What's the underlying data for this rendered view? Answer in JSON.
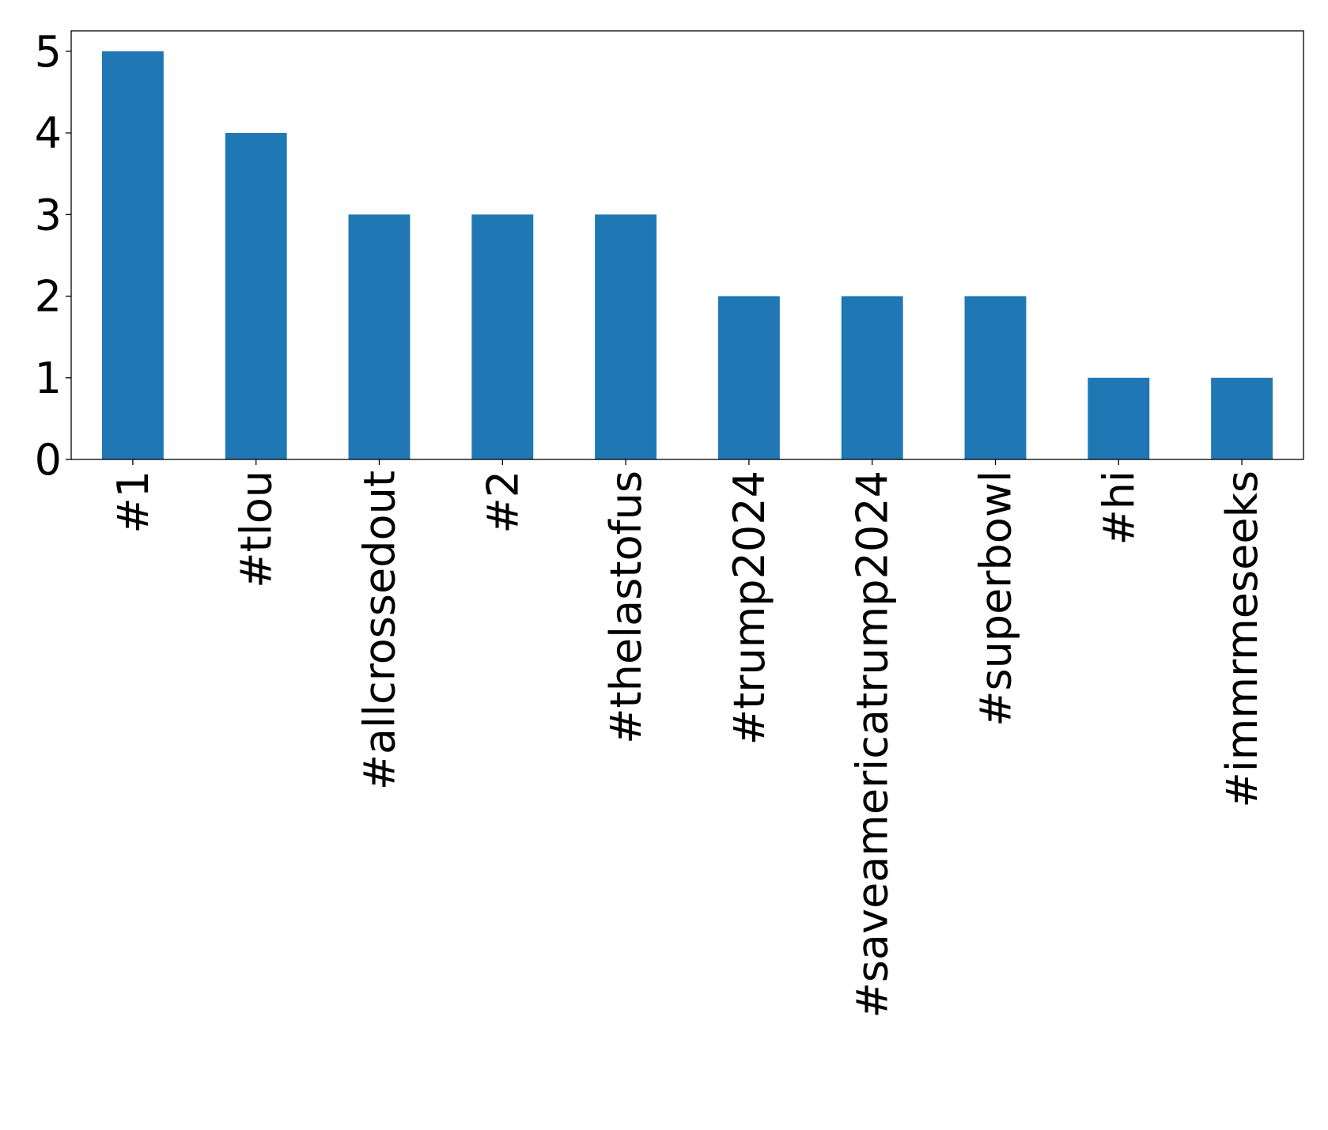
{
  "chart_data": {
    "type": "bar",
    "title": "",
    "xlabel": "",
    "ylabel": "",
    "categories": [
      "#1",
      "#tlou",
      "#allcrossedout",
      "#2",
      "#thelastofus",
      "#trump2024",
      "#saveamericatrump2024",
      "#superbowl",
      "#hi",
      "#immrmeseeks"
    ],
    "values": [
      5,
      4,
      3,
      3,
      3,
      2,
      2,
      2,
      1,
      1
    ],
    "ylim": [
      0,
      5.25
    ],
    "yticks": [
      "0",
      "1",
      "2",
      "3",
      "4",
      "5"
    ],
    "bar_color": "#1f77b4",
    "grid": false,
    "legend": "none"
  }
}
